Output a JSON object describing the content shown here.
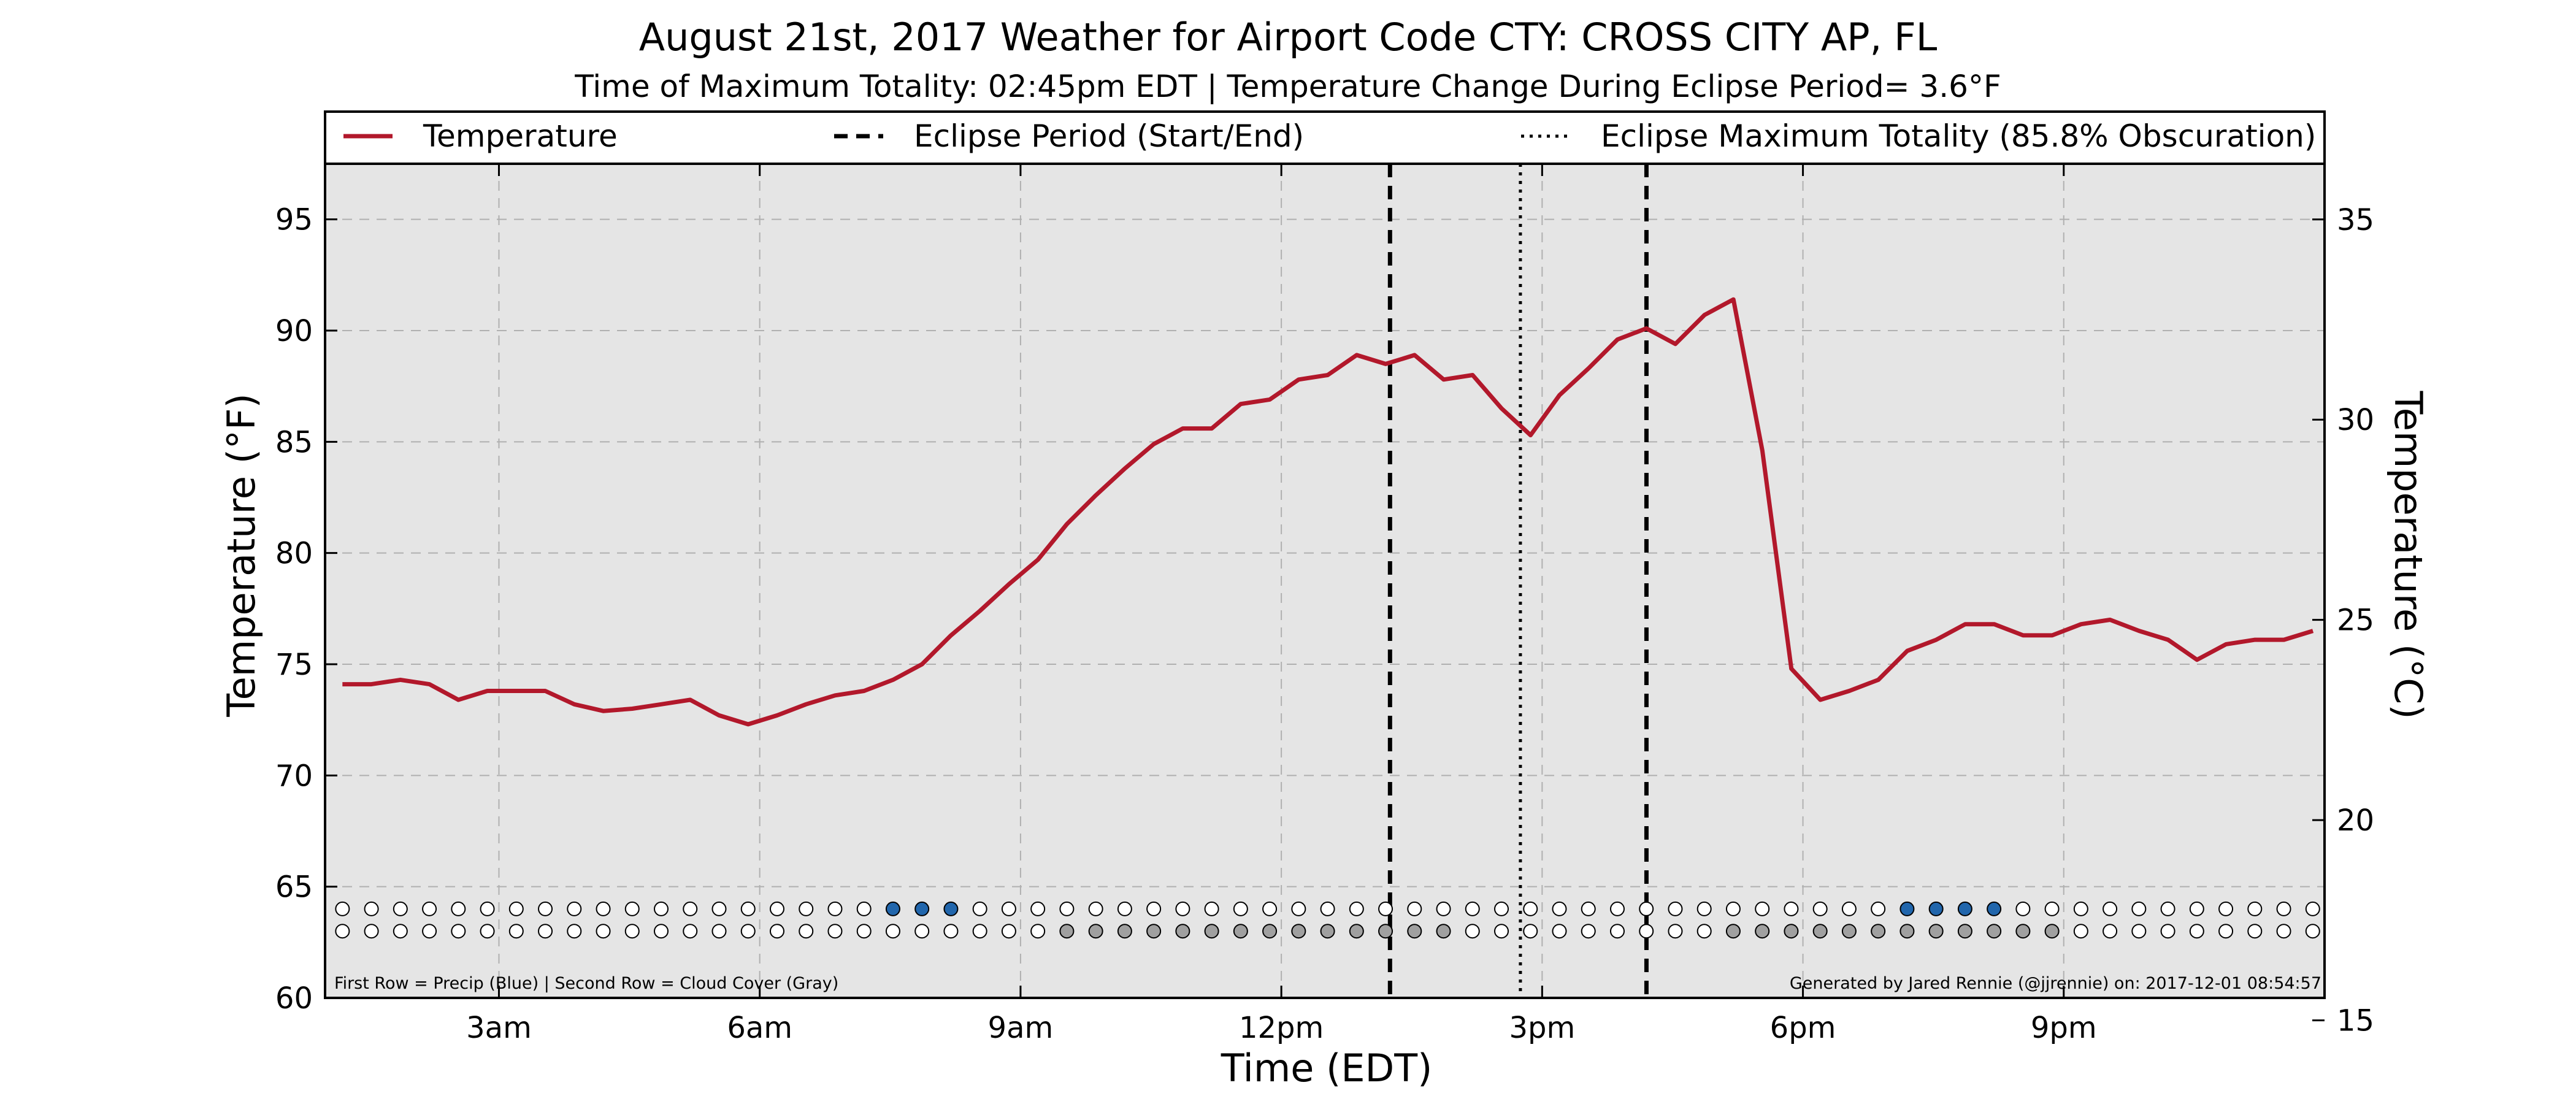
{
  "chart_data": {
    "type": "line",
    "title": "August 21st, 2017 Weather for Airport Code CTY: CROSS CITY AP, FL",
    "subtitle": "Time of Maximum Totality: 02:45pm EDT | Temperature Change During Eclipse Period= 3.6°F",
    "xlabel": "Time (EDT)",
    "ylabel": "Temperature (°F)",
    "ylabel_right": "Temperature (°C)",
    "xlim": [
      1.0,
      24.0
    ],
    "ylim": [
      60,
      97.5
    ],
    "ylim_right": [
      15.56,
      36.39
    ],
    "x_ticks": [
      {
        "value": 3,
        "label": "3am"
      },
      {
        "value": 6,
        "label": "6am"
      },
      {
        "value": 9,
        "label": "9am"
      },
      {
        "value": 12,
        "label": "12pm"
      },
      {
        "value": 15,
        "label": "3pm"
      },
      {
        "value": 18,
        "label": "6pm"
      },
      {
        "value": 21,
        "label": "9pm"
      }
    ],
    "y_ticks": [
      60,
      65,
      70,
      75,
      80,
      85,
      90,
      95
    ],
    "y_ticks_right": [
      15,
      20,
      25,
      30,
      35
    ],
    "grid": true,
    "legend_position": "top (full width above plot)",
    "legend": [
      {
        "label": "Temperature",
        "style": "solid",
        "color": "#b2182b"
      },
      {
        "label": "Eclipse Period (Start/End)",
        "style": "dashed",
        "color": "#000000"
      },
      {
        "label": "Eclipse Maximum Totality (85.8% Obscuration)",
        "style": "dotted",
        "color": "#000000"
      }
    ],
    "series": [
      {
        "name": "Temperature",
        "color": "#b2182b",
        "x": [
          1.2,
          1.533,
          1.867,
          2.2,
          2.533,
          2.867,
          3.2,
          3.533,
          3.867,
          4.2,
          4.533,
          4.867,
          5.2,
          5.533,
          5.867,
          6.2,
          6.533,
          6.867,
          7.2,
          7.533,
          7.867,
          8.2,
          8.533,
          8.867,
          9.2,
          9.533,
          9.867,
          10.2,
          10.533,
          10.867,
          11.2,
          11.533,
          11.867,
          12.2,
          12.533,
          12.867,
          13.2,
          13.533,
          13.867,
          14.2,
          14.533,
          14.867,
          15.2,
          15.533,
          15.867,
          16.2,
          16.533,
          16.867,
          17.2,
          17.533,
          17.867,
          18.2,
          18.533,
          18.867,
          19.2,
          19.533,
          19.867,
          20.2,
          20.533,
          20.867,
          21.2,
          21.533,
          21.867,
          22.2,
          22.533,
          22.867,
          23.2,
          23.533,
          23.867
        ],
        "values": [
          74.1,
          74.1,
          74.3,
          74.1,
          73.4,
          73.8,
          73.8,
          73.8,
          73.2,
          72.9,
          73.0,
          73.2,
          73.4,
          72.7,
          72.3,
          72.7,
          73.2,
          73.6,
          73.8,
          74.3,
          75.0,
          76.3,
          77.4,
          78.6,
          79.7,
          81.3,
          82.6,
          83.8,
          84.9,
          85.6,
          85.6,
          86.7,
          86.9,
          87.8,
          88.0,
          88.9,
          88.5,
          88.9,
          87.8,
          88.0,
          86.5,
          85.3,
          87.1,
          88.3,
          89.6,
          90.1,
          89.4,
          90.7,
          91.4,
          84.6,
          74.8,
          73.4,
          73.8,
          74.3,
          75.6,
          76.1,
          76.8,
          76.8,
          76.3,
          76.3,
          76.8,
          77.0,
          76.5,
          76.1,
          75.2,
          75.9,
          76.1,
          76.1,
          76.5
        ]
      }
    ],
    "eclipse_lines": [
      {
        "x": 13.25,
        "style": "dashed",
        "meaning": "Eclipse start"
      },
      {
        "x": 14.75,
        "style": "dotted",
        "meaning": "Maximum totality"
      },
      {
        "x": 16.2,
        "style": "dashed",
        "meaning": "Eclipse end"
      }
    ],
    "markers": {
      "x_start": 1.2,
      "x_step": 0.3333,
      "count": 69,
      "precip_row_y": 64.0,
      "cloud_row_y": 63.0,
      "precip_indices": [
        19,
        20,
        21,
        54,
        55,
        56,
        57
      ],
      "cloud_indices": [
        25,
        26,
        27,
        28,
        29,
        30,
        31,
        32,
        33,
        34,
        35,
        36,
        37,
        38,
        48,
        49,
        50,
        51,
        52,
        53,
        54,
        55,
        56,
        57,
        58,
        59
      ],
      "precip_color": "#2166ac",
      "cloud_color": "#a0a0a0",
      "empty_color": "#ffffff"
    },
    "footnote_left": "First Row = Precip (Blue) | Second Row = Cloud Cover (Gray)",
    "footnote_right": "Generated by Jared Rennie (@jjrennie) on: 2017-12-01 08:54:57"
  },
  "colors": {
    "plot_background": "#e5e5e5",
    "grid": "#b0b0b0",
    "temperature": "#b2182b"
  }
}
